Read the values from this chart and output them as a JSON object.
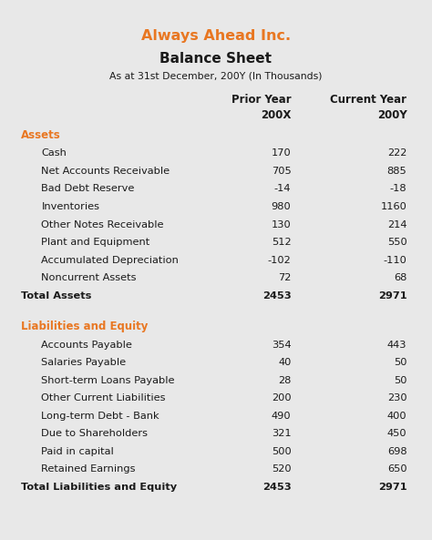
{
  "title_company": "Always Ahead Inc.",
  "title_sheet": "Balance Sheet",
  "subtitle": "As at 31st December, 200Y (In Thousands)",
  "orange_color": "#E87722",
  "bg_color": "#E8E8E8",
  "card_color": "#FFFFFF",
  "text_color": "#1A1A1A",
  "sections": [
    {
      "heading": "Assets",
      "rows": [
        {
          "label": "Cash",
          "prior": "170",
          "current": "222",
          "bold": false
        },
        {
          "label": "Net Accounts Receivable",
          "prior": "705",
          "current": "885",
          "bold": false
        },
        {
          "label": "Bad Debt Reserve",
          "prior": "-14",
          "current": "-18",
          "bold": false
        },
        {
          "label": "Inventories",
          "prior": "980",
          "current": "1160",
          "bold": false
        },
        {
          "label": "Other Notes Receivable",
          "prior": "130",
          "current": "214",
          "bold": false
        },
        {
          "label": "Plant and Equipment",
          "prior": "512",
          "current": "550",
          "bold": false
        },
        {
          "label": "Accumulated Depreciation",
          "prior": "-102",
          "current": "-110",
          "bold": false
        },
        {
          "label": "Noncurrent Assets",
          "prior": "72",
          "current": "68",
          "bold": false
        },
        {
          "label": "Total Assets",
          "prior": "2453",
          "current": "2971",
          "bold": true
        }
      ]
    },
    {
      "heading": "Liabilities and Equity",
      "rows": [
        {
          "label": "Accounts Payable",
          "prior": "354",
          "current": "443",
          "bold": false
        },
        {
          "label": "Salaries Payable",
          "prior": "40",
          "current": "50",
          "bold": false
        },
        {
          "label": "Short-term Loans Payable",
          "prior": "28",
          "current": "50",
          "bold": false
        },
        {
          "label": "Other Current Liabilities",
          "prior": "200",
          "current": "230",
          "bold": false
        },
        {
          "label": "Long-term Debt - Bank",
          "prior": "490",
          "current": "400",
          "bold": false
        },
        {
          "label": "Due to Shareholders",
          "prior": "321",
          "current": "450",
          "bold": false
        },
        {
          "label": "Paid in capital",
          "prior": "500",
          "current": "698",
          "bold": false
        },
        {
          "label": "Retained Earnings",
          "prior": "520",
          "current": "650",
          "bold": false
        },
        {
          "label": "Total Liabilities and Equity",
          "prior": "2453",
          "current": "2971",
          "bold": true
        }
      ]
    }
  ],
  "fig_width": 4.74,
  "fig_height": 5.93,
  "dpi": 100
}
